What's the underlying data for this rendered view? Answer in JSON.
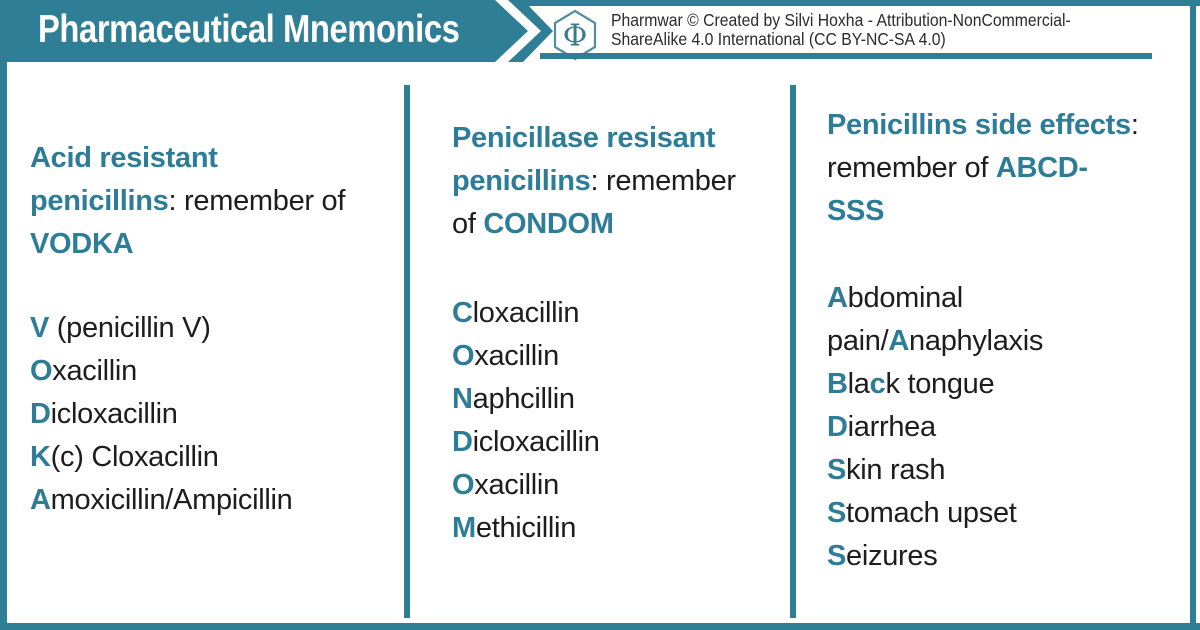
{
  "colors": {
    "frame": "#2e7f96",
    "accent_text": "#2d7d99",
    "body_text": "#1d1d1d",
    "attribution_text": "#2b2b2b",
    "banner_title": "#ffffff",
    "logo": "#4f8ea1"
  },
  "banner": {
    "title": "Pharmaceutical Mnemonics"
  },
  "attribution": {
    "logo_glyph": "Φ",
    "line1": "Pharmwar © Created by Silvi Hoxha - Attribution-NonCommercial-",
    "line2": "ShareAlike 4.0 International (CC BY-NC-SA 4.0)"
  },
  "columns": [
    {
      "name": "acid-resistant-penicillins",
      "heading_lines": [
        [
          {
            "t": "Acid resistant",
            "a": true
          }
        ],
        [
          {
            "t": "penicillins",
            "a": true
          },
          {
            "t": ": remember of",
            "a": false
          }
        ],
        [
          {
            "t": "VODKA",
            "a": true
          }
        ]
      ],
      "items": [
        [
          {
            "t": "V",
            "a": true
          },
          {
            "t": " (penicillin V)",
            "a": false
          }
        ],
        [
          {
            "t": "O",
            "a": true
          },
          {
            "t": "xacillin",
            "a": false
          }
        ],
        [
          {
            "t": "D",
            "a": true
          },
          {
            "t": "icloxacillin",
            "a": false
          }
        ],
        [
          {
            "t": "K",
            "a": true
          },
          {
            "t": "(c) Cloxacillin",
            "a": false
          }
        ],
        [
          {
            "t": "A",
            "a": true
          },
          {
            "t": "moxicillin/Ampicillin",
            "a": false
          }
        ]
      ]
    },
    {
      "name": "penicillase-resistant-penicillins",
      "heading_lines": [
        [
          {
            "t": "Penicillase resisant",
            "a": true
          }
        ],
        [
          {
            "t": "penicillins",
            "a": true
          },
          {
            "t": ": remember",
            "a": false
          }
        ],
        [
          {
            "t": "of ",
            "a": false
          },
          {
            "t": "CONDOM",
            "a": true
          }
        ]
      ],
      "items": [
        [
          {
            "t": "C",
            "a": true
          },
          {
            "t": "loxacillin",
            "a": false
          }
        ],
        [
          {
            "t": "O",
            "a": true
          },
          {
            "t": "xacillin",
            "a": false
          }
        ],
        [
          {
            "t": "N",
            "a": true
          },
          {
            "t": "aphcillin",
            "a": false
          }
        ],
        [
          {
            "t": "D",
            "a": true
          },
          {
            "t": "icloxacillin",
            "a": false
          }
        ],
        [
          {
            "t": "O",
            "a": true
          },
          {
            "t": "xacillin",
            "a": false
          }
        ],
        [
          {
            "t": "M",
            "a": true
          },
          {
            "t": "ethicillin",
            "a": false
          }
        ]
      ]
    },
    {
      "name": "penicillins-side-effects",
      "heading_lines": [
        [
          {
            "t": "Penicillins side effects",
            "a": true
          },
          {
            "t": ":",
            "a": false
          }
        ],
        [
          {
            "t": "remember of ",
            "a": false
          },
          {
            "t": "ABCD-",
            "a": true
          }
        ],
        [
          {
            "t": "SSS",
            "a": true
          }
        ]
      ],
      "items": [
        [
          {
            "t": "A",
            "a": true
          },
          {
            "t": "bdominal",
            "a": false
          }
        ],
        [
          {
            "t": "pain/",
            "a": false
          },
          {
            "t": "A",
            "a": true
          },
          {
            "t": "naphylaxis",
            "a": false
          }
        ],
        [
          {
            "t": "B",
            "a": true
          },
          {
            "t": "la",
            "a": false
          },
          {
            "t": "c",
            "a": true
          },
          {
            "t": "k tongue",
            "a": false
          }
        ],
        [
          {
            "t": "D",
            "a": true
          },
          {
            "t": "iarrhea",
            "a": false
          }
        ],
        [
          {
            "t": "S",
            "a": true
          },
          {
            "t": "kin rash",
            "a": false
          }
        ],
        [
          {
            "t": "S",
            "a": true
          },
          {
            "t": "tomach upset",
            "a": false
          }
        ],
        [
          {
            "t": "S",
            "a": true
          },
          {
            "t": "eizures",
            "a": false
          }
        ]
      ]
    }
  ]
}
